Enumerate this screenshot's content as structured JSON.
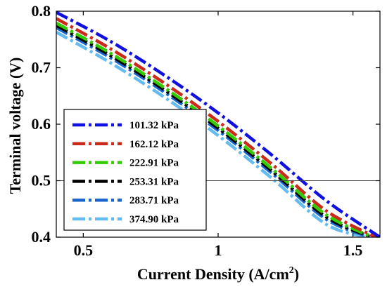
{
  "chart_data": {
    "type": "line",
    "title": "",
    "xlabel": "Current Density (A/cm",
    "xlabel_superscript": "2",
    "xlabel_suffix": ")",
    "ylabel": "Terminal voltage (V)",
    "xlim": [
      0.4,
      1.6
    ],
    "ylim": [
      0.4,
      0.8
    ],
    "xticks": [
      0.5,
      1,
      1.5
    ],
    "xtick_labels": [
      "0.5",
      "1",
      "1.5"
    ],
    "yticks": [
      0.4,
      0.5,
      0.6,
      0.7,
      0.8
    ],
    "ytick_labels": [
      "0.4",
      "0.5",
      "0.6",
      "0.7",
      "0.8"
    ],
    "grid": false,
    "legend_position": "lower-left",
    "reference_line": {
      "y": 0.5
    },
    "series": [
      {
        "name": "101.32 kPa",
        "color": "#1010e0",
        "x": [
          0.4,
          0.6,
          0.8,
          1.0,
          1.2,
          1.4,
          1.6
        ],
        "y": [
          0.798,
          0.747,
          0.687,
          0.62,
          0.545,
          0.465,
          0.4
        ]
      },
      {
        "name": "162.12 kPa",
        "color": "#cc2a1a",
        "x": [
          0.4,
          0.6,
          0.8,
          1.0,
          1.2,
          1.4,
          1.585
        ],
        "y": [
          0.787,
          0.734,
          0.673,
          0.605,
          0.529,
          0.447,
          0.4
        ]
      },
      {
        "name": "222.91 kPa",
        "color": "#33cc00",
        "x": [
          0.4,
          0.6,
          0.8,
          1.0,
          1.2,
          1.4,
          1.575
        ],
        "y": [
          0.779,
          0.726,
          0.665,
          0.597,
          0.521,
          0.44,
          0.4
        ]
      },
      {
        "name": "253.31 kPa",
        "color": "#000000",
        "x": [
          0.4,
          0.6,
          0.8,
          1.0,
          1.2,
          1.4,
          1.57
        ],
        "y": [
          0.775,
          0.722,
          0.661,
          0.593,
          0.517,
          0.436,
          0.4
        ]
      },
      {
        "name": "283.71 kPa",
        "color": "#1a66cc",
        "x": [
          0.4,
          0.6,
          0.8,
          1.0,
          1.2,
          1.4,
          1.565
        ],
        "y": [
          0.771,
          0.718,
          0.657,
          0.589,
          0.513,
          0.432,
          0.4
        ]
      },
      {
        "name": "374.90 kPa",
        "color": "#66bbee",
        "x": [
          0.4,
          0.6,
          0.8,
          1.0,
          1.2,
          1.4,
          1.555
        ],
        "y": [
          0.763,
          0.709,
          0.648,
          0.58,
          0.504,
          0.423,
          0.4
        ]
      }
    ]
  }
}
